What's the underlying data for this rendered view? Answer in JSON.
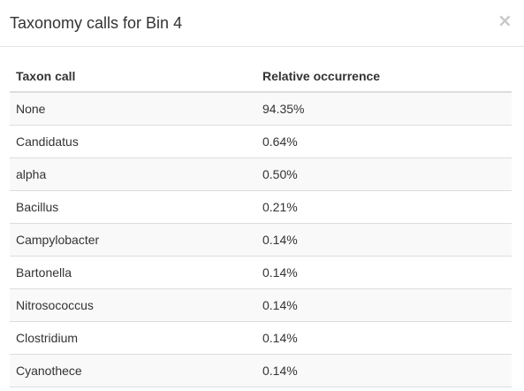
{
  "modal": {
    "title": "Taxonomy calls for Bin 4",
    "close_label": "×"
  },
  "table": {
    "headers": [
      "Taxon call",
      "Relative occurrence"
    ],
    "rows": [
      {
        "taxon": "None",
        "occurrence": "94.35%"
      },
      {
        "taxon": "Candidatus",
        "occurrence": "0.64%"
      },
      {
        "taxon": "alpha",
        "occurrence": "0.50%"
      },
      {
        "taxon": "Bacillus",
        "occurrence": "0.21%"
      },
      {
        "taxon": "Campylobacter",
        "occurrence": "0.14%"
      },
      {
        "taxon": "Bartonella",
        "occurrence": "0.14%"
      },
      {
        "taxon": "Nitrosococcus",
        "occurrence": "0.14%"
      },
      {
        "taxon": "Clostridium",
        "occurrence": "0.14%"
      },
      {
        "taxon": "Cyanothece",
        "occurrence": "0.14%"
      }
    ]
  }
}
